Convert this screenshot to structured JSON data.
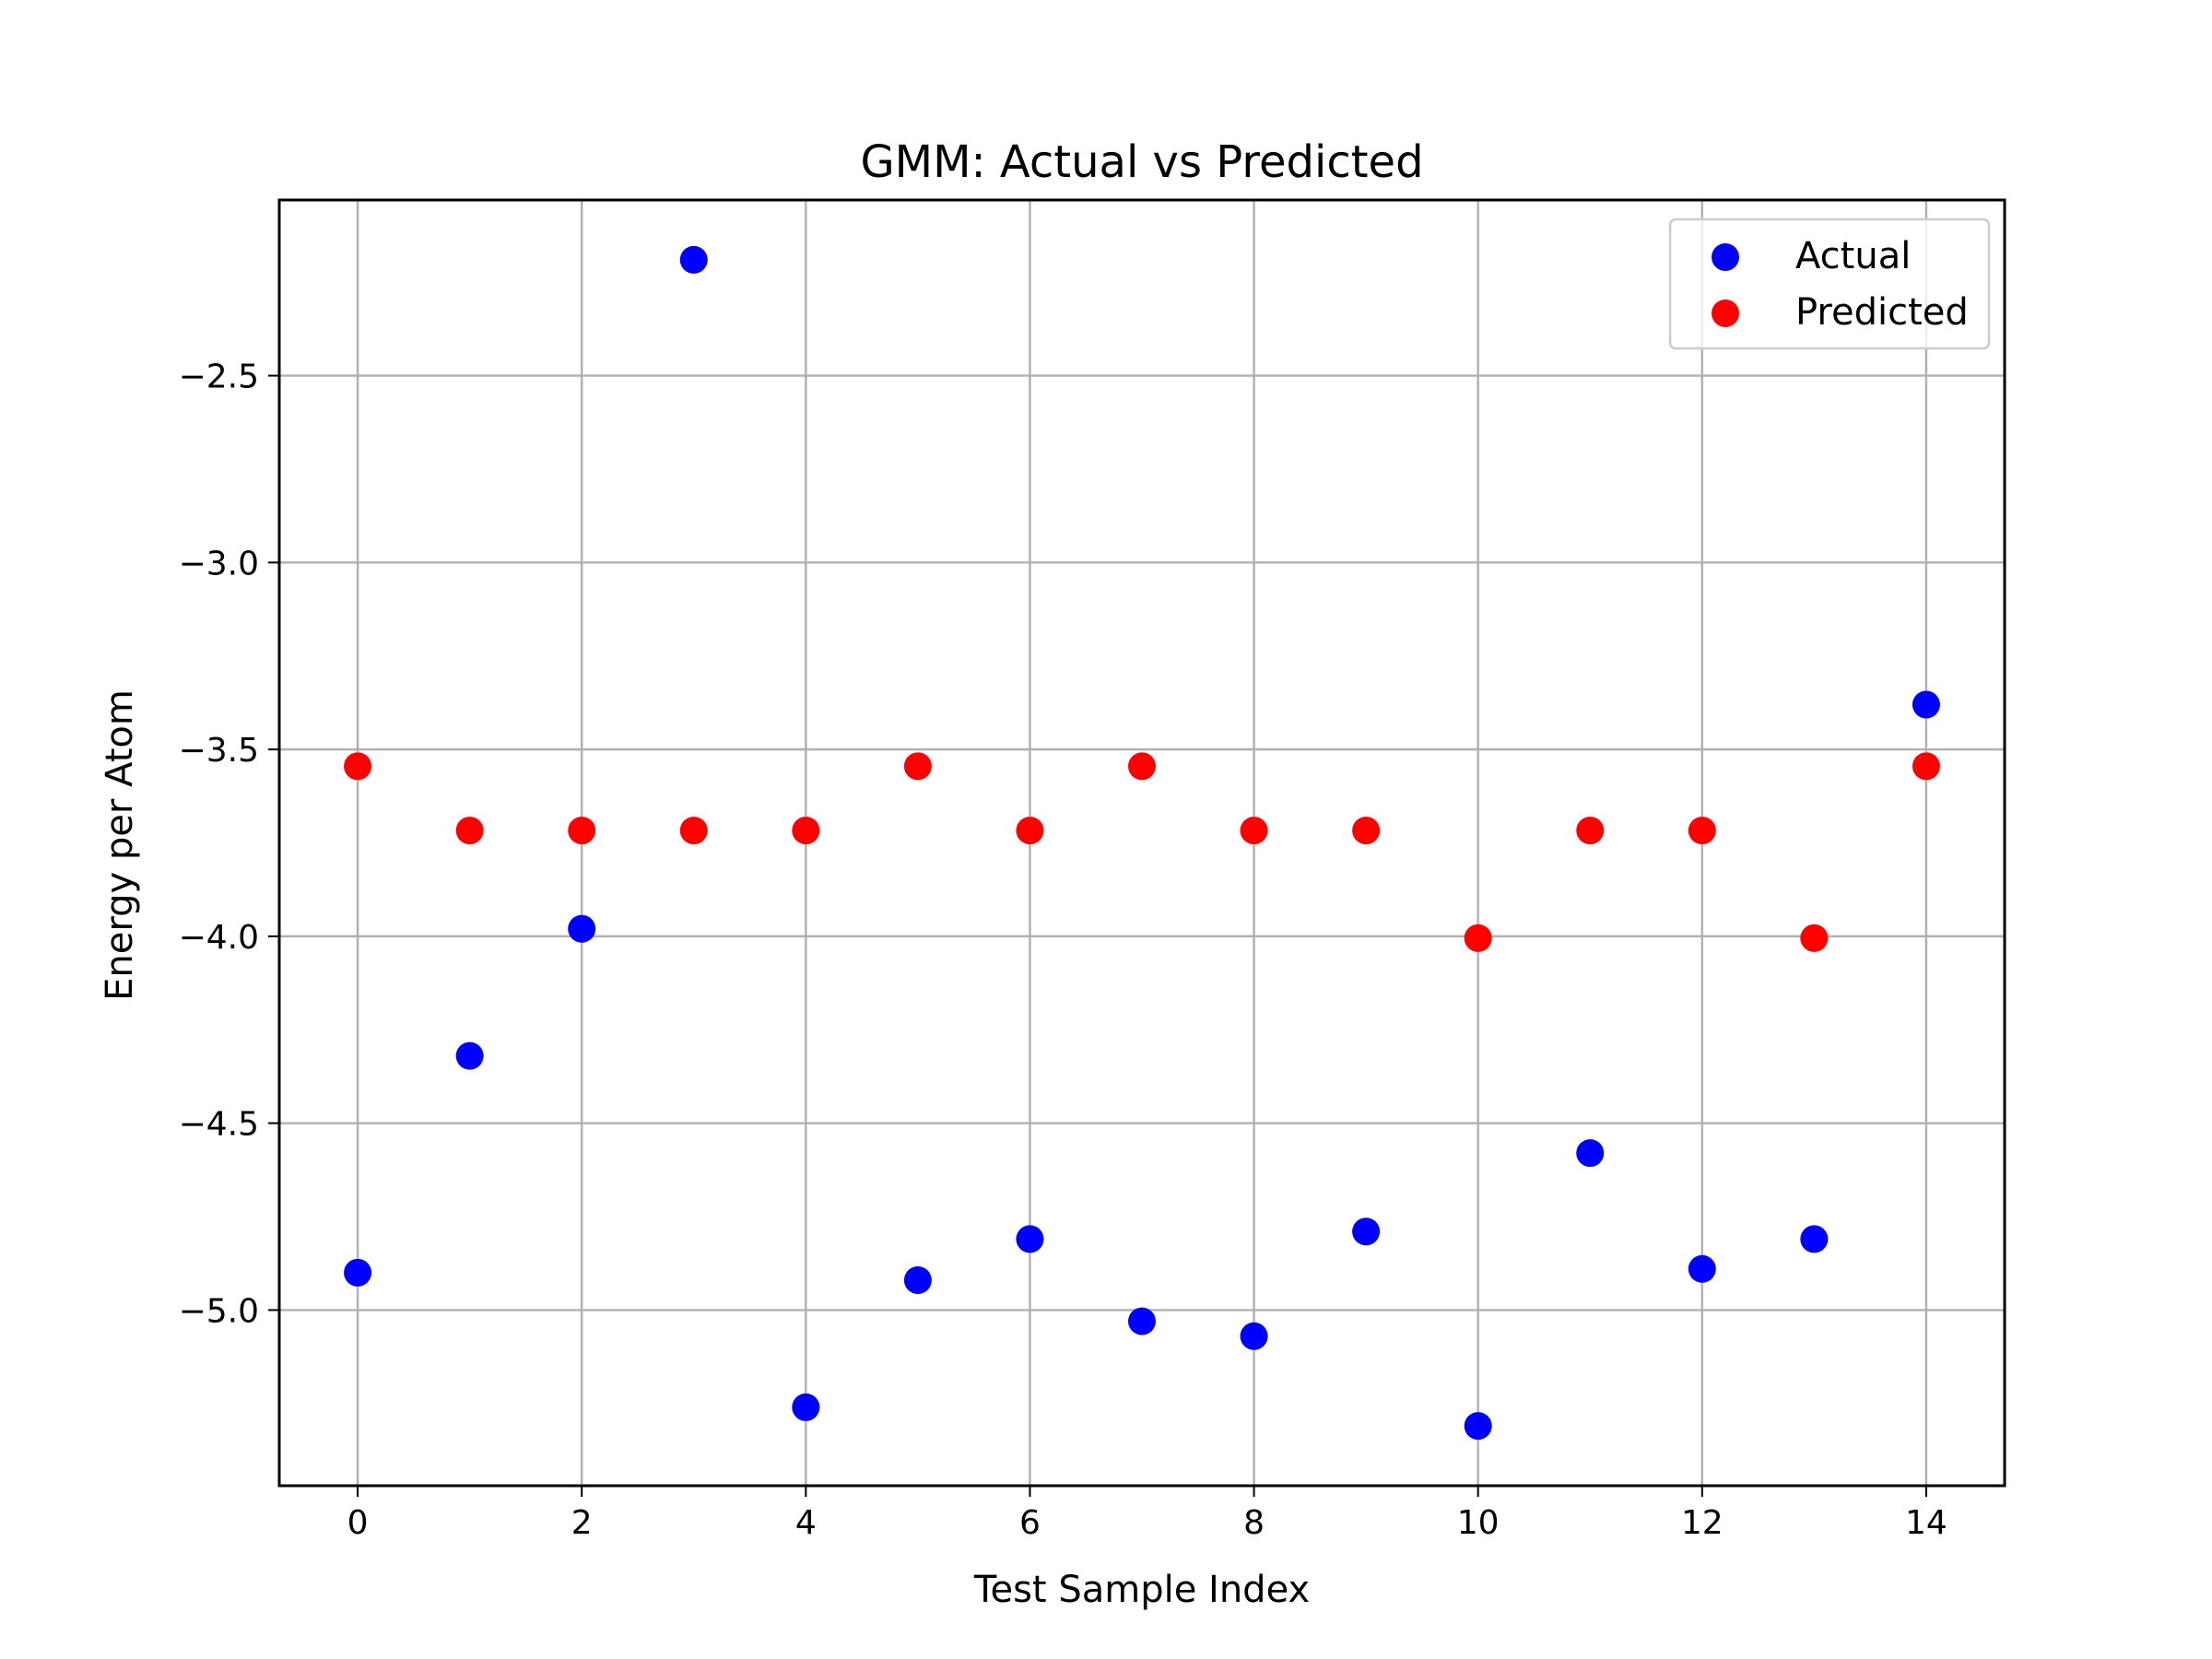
{
  "chart_data": {
    "type": "scatter",
    "title": "GMM: Actual vs Predicted",
    "xlabel": "Test Sample Index",
    "ylabel": "Energy per Atom",
    "xlim": [
      -0.7,
      14.7
    ],
    "ylim": [
      -5.47,
      -2.03
    ],
    "xticks": [
      0,
      2,
      4,
      6,
      8,
      10,
      12,
      14
    ],
    "xtick_labels": [
      "0",
      "2",
      "4",
      "6",
      "8",
      "10",
      "12",
      "14"
    ],
    "yticks": [
      -2.5,
      -3.0,
      -3.5,
      -4.0,
      -4.5,
      -5.0
    ],
    "ytick_labels": [
      "−2.5",
      "−3.0",
      "−3.5",
      "−4.0",
      "−4.5",
      "−5.0"
    ],
    "grid": true,
    "legend_position": "top-right",
    "x": [
      0,
      1,
      2,
      3,
      4,
      5,
      6,
      7,
      8,
      9,
      10,
      11,
      12,
      13,
      14
    ],
    "series": [
      {
        "name": "Actual",
        "color": "#0000ff",
        "values": [
          -4.9,
          -4.32,
          -3.98,
          -2.19,
          -5.26,
          -4.92,
          -4.81,
          -5.03,
          -5.07,
          -4.79,
          -5.31,
          -4.58,
          -4.89,
          -4.81,
          -3.38
        ]
      },
      {
        "name": "Predicted",
        "color": "#ff0000",
        "values": [
          -3.545,
          -3.717,
          -3.717,
          -3.717,
          -3.717,
          -3.545,
          -3.717,
          -3.545,
          -3.717,
          -3.717,
          -4.005,
          -3.717,
          -3.717,
          -4.005,
          -3.545
        ]
      }
    ]
  }
}
